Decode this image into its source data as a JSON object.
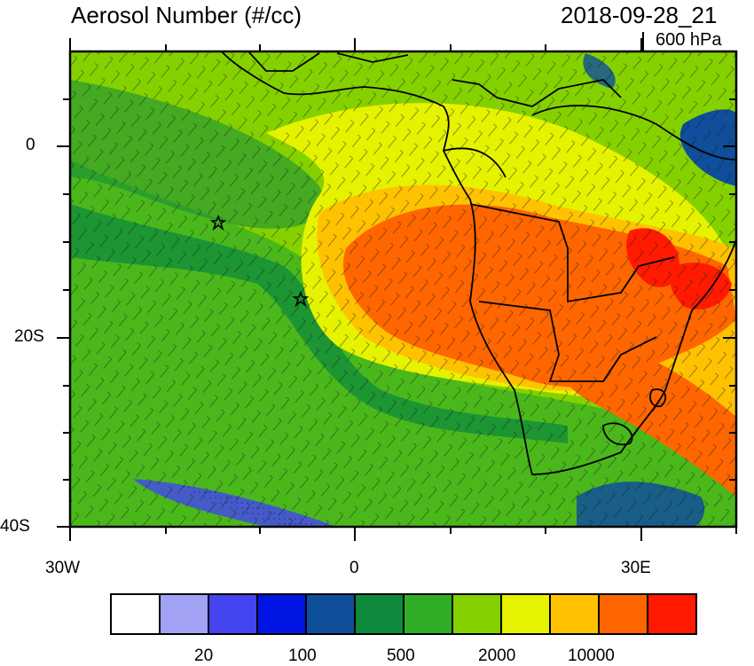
{
  "header": {
    "title": "Aerosol Number (#/cc)",
    "datetime": "2018-09-28_21",
    "level": "600 hPa"
  },
  "axes": {
    "lat_labels": [
      "0",
      "20S",
      "40S"
    ],
    "lon_labels": [
      "30W",
      "0",
      "30E"
    ]
  },
  "map": {
    "extent_lon": [
      -30,
      40
    ],
    "extent_lat": [
      -40,
      10
    ],
    "markers": [
      {
        "symbol": "star",
        "lon": -14.5,
        "lat": -8
      },
      {
        "symbol": "star",
        "lon": -5.7,
        "lat": -16
      }
    ],
    "field_colors": {
      "background_green": "#85d100",
      "dark_green": "#30ae27",
      "darker_green": "#0e8a3c",
      "yellow": "#e5f200",
      "orange": "#ffc200",
      "dark_orange": "#ff6600",
      "red": "#ff1a00",
      "blue": "#0f4e9a"
    }
  },
  "colorbar": {
    "colors": [
      "#ffffff",
      "#a2a2f5",
      "#4444f0",
      "#0014e3",
      "#0f4e9a",
      "#0e8a3c",
      "#30ae27",
      "#85d100",
      "#e5f200",
      "#ffc200",
      "#ff6600",
      "#ff1a00"
    ],
    "labels": [
      "20",
      "100",
      "500",
      "2000",
      "10000"
    ]
  }
}
